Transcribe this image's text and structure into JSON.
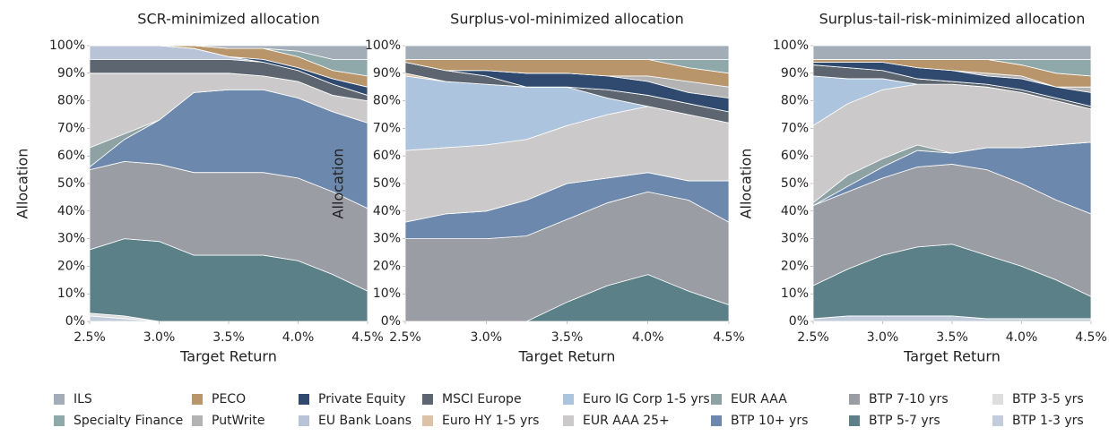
{
  "chart_data": [
    {
      "type": "area",
      "stacked": true,
      "title": "SCR-minimized allocation",
      "x_label": "Target Return",
      "y_label": "Allocation",
      "x": [
        2.5,
        2.75,
        3.0,
        3.25,
        3.5,
        3.75,
        4.0,
        4.25,
        4.5
      ],
      "xlim": [
        2.5,
        4.5
      ],
      "xticks": [
        {
          "value": 2.5,
          "label": "2.5%"
        },
        {
          "value": 3.0,
          "label": "3.0%"
        },
        {
          "value": 3.5,
          "label": "3.5%"
        },
        {
          "value": 4.0,
          "label": "4.0%"
        },
        {
          "value": 4.5,
          "label": "4.5%"
        }
      ],
      "ylim": [
        0,
        100
      ],
      "yticks": [
        {
          "value": 0,
          "label": "0%"
        },
        {
          "value": 10,
          "label": "10%"
        },
        {
          "value": 20,
          "label": "20%"
        },
        {
          "value": 30,
          "label": "30%"
        },
        {
          "value": 40,
          "label": "40%"
        },
        {
          "value": 50,
          "label": "50%"
        },
        {
          "value": 60,
          "label": "60%"
        },
        {
          "value": 70,
          "label": "70%"
        },
        {
          "value": 80,
          "label": "80%"
        },
        {
          "value": 90,
          "label": "90%"
        },
        {
          "value": 100,
          "label": "100%"
        }
      ],
      "series": [
        {
          "name": "BTP 1-3 yrs",
          "color": "#c3ccda",
          "values": [
            2,
            1,
            0,
            0,
            0,
            0,
            0,
            0,
            0
          ]
        },
        {
          "name": "BTP 3-5 yrs",
          "color": "#dedede",
          "values": [
            1,
            1,
            0,
            0,
            0,
            0,
            0,
            0,
            0
          ]
        },
        {
          "name": "BTP 5-7 yrs",
          "color": "#5b8087",
          "values": [
            23,
            28,
            29,
            24,
            24,
            24,
            22,
            17,
            11
          ]
        },
        {
          "name": "BTP 7-10 yrs",
          "color": "#9a9da3",
          "values": [
            29,
            28,
            28,
            30,
            30,
            30,
            30,
            30,
            30
          ]
        },
        {
          "name": "BTP 10+ yrs",
          "color": "#6d88ad",
          "values": [
            1,
            8,
            16,
            29,
            30,
            30,
            29,
            29,
            31
          ]
        },
        {
          "name": "EUR AAA",
          "color": "#8ea2a3",
          "values": [
            7,
            2,
            0,
            0,
            0,
            0,
            0,
            0,
            0
          ]
        },
        {
          "name": "EUR AAA 25+",
          "color": "#cbc9c9",
          "values": [
            27,
            22,
            17,
            7,
            6,
            5,
            6,
            6,
            8
          ]
        },
        {
          "name": "Euro IG Corp 1-5 yrs",
          "color": "#adc4df",
          "values": [
            0,
            0,
            0,
            0,
            0,
            0,
            0,
            0,
            0
          ]
        },
        {
          "name": "Euro HY 1-5 yrs",
          "color": "#dcc3a8",
          "values": [
            0,
            0,
            0,
            0,
            0,
            0,
            0,
            0,
            0
          ]
        },
        {
          "name": "MSCI Europe",
          "color": "#5d6670",
          "values": [
            5,
            5,
            5,
            5,
            5,
            5,
            4,
            4,
            2
          ]
        },
        {
          "name": "EU Bank Loans",
          "color": "#b9c3d8",
          "values": [
            5,
            5,
            5,
            4,
            1,
            0,
            0,
            0,
            0
          ]
        },
        {
          "name": "Private Equity",
          "color": "#2f4a6e",
          "values": [
            0,
            0,
            0,
            0,
            0,
            1,
            1,
            2,
            3
          ]
        },
        {
          "name": "PutWrite",
          "color": "#b3b3b3",
          "values": [
            0,
            0,
            0,
            0,
            0,
            0,
            0,
            0,
            0
          ]
        },
        {
          "name": "PECO",
          "color": "#b8956a",
          "values": [
            0,
            0,
            0,
            1,
            3,
            4,
            4,
            3,
            4
          ]
        },
        {
          "name": "Specialty Finance",
          "color": "#8fa8aa",
          "values": [
            0,
            0,
            0,
            0,
            0,
            0,
            2,
            4,
            6
          ]
        },
        {
          "name": "ILS",
          "color": "#a3adb8",
          "values": [
            0,
            0,
            0,
            0,
            1,
            1,
            2,
            5,
            5
          ]
        }
      ]
    },
    {
      "type": "area",
      "stacked": true,
      "title": "Surplus-vol-minimized allocation",
      "x_label": "Target Return",
      "y_label": "Allocation",
      "x": [
        2.5,
        2.75,
        3.0,
        3.25,
        3.5,
        3.75,
        4.0,
        4.25,
        4.5
      ],
      "xlim": [
        2.5,
        4.5
      ],
      "xticks": [
        {
          "value": 2.5,
          "label": "2.5%"
        },
        {
          "value": 3.0,
          "label": "3.0%"
        },
        {
          "value": 3.5,
          "label": "3.5%"
        },
        {
          "value": 4.0,
          "label": "4.0%"
        },
        {
          "value": 4.5,
          "label": "4.5%"
        }
      ],
      "ylim": [
        0,
        100
      ],
      "yticks": [
        {
          "value": 0,
          "label": "0%"
        },
        {
          "value": 10,
          "label": "10%"
        },
        {
          "value": 20,
          "label": "20%"
        },
        {
          "value": 30,
          "label": "30%"
        },
        {
          "value": 40,
          "label": "40%"
        },
        {
          "value": 50,
          "label": "50%"
        },
        {
          "value": 60,
          "label": "60%"
        },
        {
          "value": 70,
          "label": "70%"
        },
        {
          "value": 80,
          "label": "80%"
        },
        {
          "value": 90,
          "label": "90%"
        },
        {
          "value": 100,
          "label": "100%"
        }
      ],
      "series": [
        {
          "name": "BTP 1-3 yrs",
          "color": "#c3ccda",
          "values": [
            0,
            0,
            0,
            0,
            0,
            0,
            0,
            0,
            0
          ]
        },
        {
          "name": "BTP 3-5 yrs",
          "color": "#dedede",
          "values": [
            0,
            0,
            0,
            0,
            0,
            0,
            0,
            0,
            0
          ]
        },
        {
          "name": "BTP 5-7 yrs",
          "color": "#5b8087",
          "values": [
            0,
            0,
            0,
            0,
            7,
            13,
            17,
            11,
            6
          ]
        },
        {
          "name": "BTP 7-10 yrs",
          "color": "#9a9da3",
          "values": [
            30,
            30,
            30,
            31,
            30,
            30,
            30,
            33,
            30
          ]
        },
        {
          "name": "BTP 10+ yrs",
          "color": "#6d88ad",
          "values": [
            6,
            9,
            10,
            13,
            13,
            9,
            7,
            7,
            15
          ]
        },
        {
          "name": "EUR AAA",
          "color": "#8ea2a3",
          "values": [
            0,
            0,
            0,
            0,
            0,
            0,
            0,
            0,
            0
          ]
        },
        {
          "name": "EUR AAA 25+",
          "color": "#cbc9c9",
          "values": [
            26,
            24,
            24,
            22,
            21,
            23,
            24,
            24,
            21
          ]
        },
        {
          "name": "Euro IG Corp 1-5 yrs",
          "color": "#adc4df",
          "values": [
            27,
            24,
            22,
            19,
            14,
            6,
            0,
            0,
            0
          ]
        },
        {
          "name": "Euro HY 1-5 yrs",
          "color": "#dcc3a8",
          "values": [
            1,
            0,
            0,
            0,
            0,
            0,
            0,
            0,
            0
          ]
        },
        {
          "name": "MSCI Europe",
          "color": "#5d6670",
          "values": [
            4,
            4,
            3,
            0,
            0,
            3,
            4,
            4,
            4
          ]
        },
        {
          "name": "EU Bank Loans",
          "color": "#b9c3d8",
          "values": [
            0,
            0,
            0,
            0,
            0,
            0,
            0,
            0,
            0
          ]
        },
        {
          "name": "Private Equity",
          "color": "#2f4a6e",
          "values": [
            0,
            0,
            2,
            5,
            5,
            5,
            5,
            4,
            5
          ]
        },
        {
          "name": "PutWrite",
          "color": "#b3b3b3",
          "values": [
            0,
            0,
            0,
            0,
            0,
            0,
            2,
            4,
            4
          ]
        },
        {
          "name": "PECO",
          "color": "#b8956a",
          "values": [
            1,
            4,
            4,
            5,
            5,
            6,
            6,
            5,
            5
          ]
        },
        {
          "name": "Specialty Finance",
          "color": "#8fa8aa",
          "values": [
            0,
            0,
            0,
            0,
            0,
            0,
            0,
            3,
            5
          ]
        },
        {
          "name": "ILS",
          "color": "#a3adb8",
          "values": [
            5,
            5,
            5,
            5,
            5,
            5,
            5,
            5,
            5
          ]
        }
      ]
    },
    {
      "type": "area",
      "stacked": true,
      "title": "Surplus-tail-risk-minimized allocation",
      "x_label": "Target Return",
      "y_label": "Allocation",
      "x": [
        2.5,
        2.75,
        3.0,
        3.25,
        3.5,
        3.75,
        4.0,
        4.25,
        4.5
      ],
      "xlim": [
        2.5,
        4.5
      ],
      "xticks": [
        {
          "value": 2.5,
          "label": "2.5%"
        },
        {
          "value": 3.0,
          "label": "3.0%"
        },
        {
          "value": 3.5,
          "label": "3.5%"
        },
        {
          "value": 4.0,
          "label": "4.0%"
        },
        {
          "value": 4.5,
          "label": "4.5%"
        }
      ],
      "ylim": [
        0,
        100
      ],
      "yticks": [
        {
          "value": 0,
          "label": "0%"
        },
        {
          "value": 10,
          "label": "10%"
        },
        {
          "value": 20,
          "label": "20%"
        },
        {
          "value": 30,
          "label": "30%"
        },
        {
          "value": 40,
          "label": "40%"
        },
        {
          "value": 50,
          "label": "50%"
        },
        {
          "value": 60,
          "label": "60%"
        },
        {
          "value": 70,
          "label": "70%"
        },
        {
          "value": 80,
          "label": "80%"
        },
        {
          "value": 90,
          "label": "90%"
        },
        {
          "value": 100,
          "label": "100%"
        }
      ],
      "series": [
        {
          "name": "BTP 1-3 yrs",
          "color": "#c3ccda",
          "values": [
            1,
            2,
            2,
            2,
            2,
            1,
            1,
            1,
            1
          ]
        },
        {
          "name": "BTP 3-5 yrs",
          "color": "#dedede",
          "values": [
            0,
            0,
            0,
            0,
            0,
            0,
            0,
            0,
            0
          ]
        },
        {
          "name": "BTP 5-7 yrs",
          "color": "#5b8087",
          "values": [
            12,
            17,
            22,
            25,
            26,
            23,
            19,
            14,
            8
          ]
        },
        {
          "name": "BTP 7-10 yrs",
          "color": "#9a9da3",
          "values": [
            29,
            28,
            28,
            29,
            29,
            31,
            30,
            29,
            30
          ]
        },
        {
          "name": "BTP 10+ yrs",
          "color": "#6d88ad",
          "values": [
            0,
            2,
            4,
            6,
            4,
            8,
            13,
            20,
            26
          ]
        },
        {
          "name": "EUR AAA",
          "color": "#8ea2a3",
          "values": [
            1,
            4,
            3,
            2,
            0,
            0,
            0,
            0,
            0
          ]
        },
        {
          "name": "EUR AAA 25+",
          "color": "#cbc9c9",
          "values": [
            28,
            26,
            25,
            22,
            25,
            22,
            20,
            16,
            12
          ]
        },
        {
          "name": "Euro IG Corp 1-5 yrs",
          "color": "#adc4df",
          "values": [
            18,
            9,
            4,
            0,
            0,
            0,
            0,
            0,
            0
          ]
        },
        {
          "name": "Euro HY 1-5 yrs",
          "color": "#dcc3a8",
          "values": [
            0,
            0,
            0,
            0,
            0,
            0,
            0,
            0,
            0
          ]
        },
        {
          "name": "MSCI Europe",
          "color": "#5d6670",
          "values": [
            4,
            4,
            3,
            2,
            1,
            1,
            1,
            1,
            1
          ]
        },
        {
          "name": "EU Bank Loans",
          "color": "#b9c3d8",
          "values": [
            0,
            0,
            0,
            0,
            0,
            0,
            0,
            0,
            0
          ]
        },
        {
          "name": "Private Equity",
          "color": "#2f4a6e",
          "values": [
            1,
            2,
            3,
            4,
            4,
            3,
            4,
            4,
            5
          ]
        },
        {
          "name": "PutWrite",
          "color": "#b3b3b3",
          "values": [
            0,
            0,
            0,
            0,
            0,
            1,
            1,
            0,
            2
          ]
        },
        {
          "name": "PECO",
          "color": "#b8956a",
          "values": [
            1,
            1,
            1,
            3,
            4,
            5,
            4,
            5,
            4
          ]
        },
        {
          "name": "Specialty Finance",
          "color": "#8fa8aa",
          "values": [
            0,
            0,
            0,
            0,
            0,
            0,
            2,
            5,
            6
          ]
        },
        {
          "name": "ILS",
          "color": "#a3adb8",
          "values": [
            5,
            5,
            5,
            5,
            5,
            5,
            5,
            5,
            5
          ]
        }
      ]
    }
  ]
}
